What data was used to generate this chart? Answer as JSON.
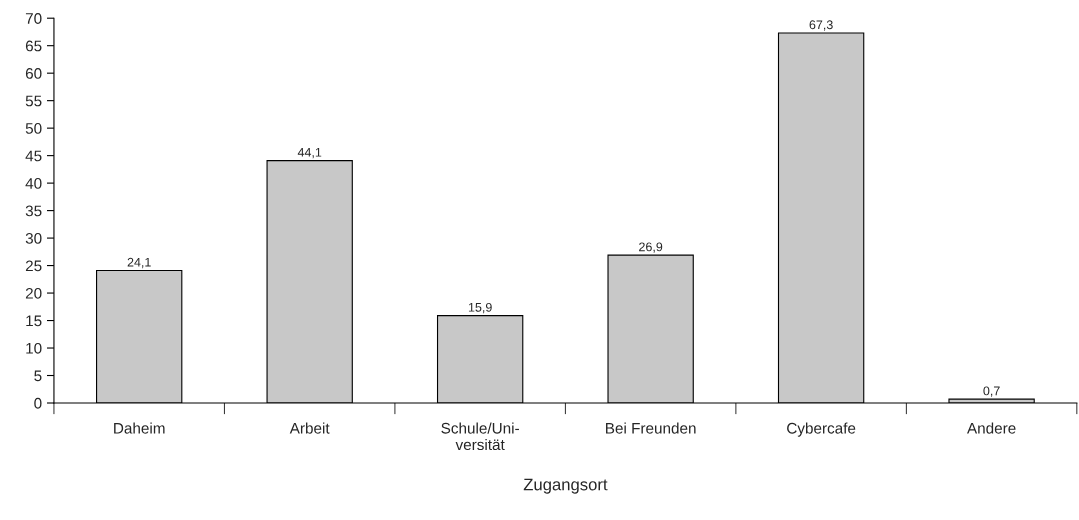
{
  "chart_data": {
    "type": "bar",
    "xlabel": "Zugangsort",
    "categories": [
      "Daheim",
      "Arbeit",
      "Schule/Uni-\nversität",
      "Bei Freunden",
      "Cybercafe",
      "Andere"
    ],
    "values": [
      24.1,
      44.1,
      15.9,
      26.9,
      67.3,
      0.7
    ],
    "value_labels": [
      "24,1",
      "44,1",
      "15,9",
      "26,9",
      "67,3",
      "0,7"
    ],
    "color": "#c8c8c8",
    "ylim": [
      0,
      70
    ],
    "yticks": [
      0,
      5,
      10,
      15,
      20,
      25,
      30,
      35,
      40,
      45,
      50,
      55,
      60,
      65,
      70
    ],
    "grid": false,
    "legend": false
  }
}
